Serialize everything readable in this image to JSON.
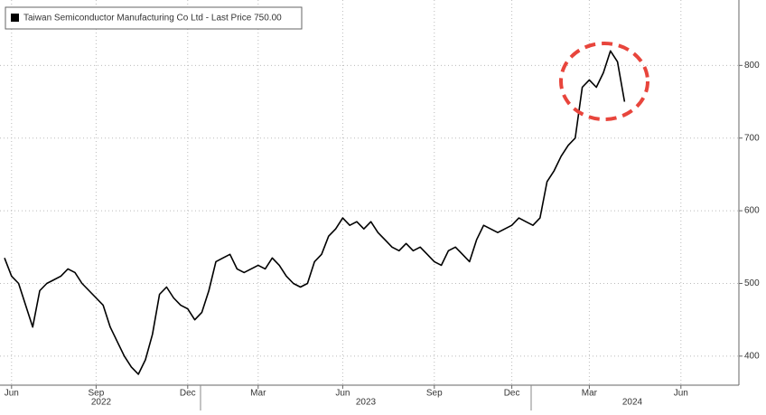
{
  "chart_data": {
    "type": "line",
    "categories": [
      null,
      "Jun",
      null,
      null,
      null,
      null,
      null,
      null,
      null,
      null,
      null,
      null,
      null,
      "Sep",
      null,
      null,
      null,
      null,
      null,
      null,
      null,
      null,
      null,
      null,
      null,
      null,
      "Dec",
      null,
      null,
      null,
      null,
      null,
      null,
      null,
      null,
      null,
      "Mar",
      null,
      null,
      null,
      null,
      null,
      null,
      null,
      null,
      null,
      null,
      null,
      "Jun",
      null,
      null,
      null,
      null,
      null,
      null,
      null,
      null,
      null,
      null,
      null,
      null,
      "Sep",
      null,
      null,
      null,
      null,
      null,
      null,
      null,
      null,
      null,
      null,
      "Dec",
      null,
      null,
      null,
      null,
      null,
      null,
      null,
      null,
      null,
      null,
      "Mar",
      null,
      null,
      null,
      null,
      null,
      null,
      null,
      null,
      null,
      null,
      null,
      null,
      "Jun",
      null,
      null,
      null,
      null,
      null,
      null,
      null,
      null
    ],
    "x_year_labels": [
      "2022",
      "2023",
      "2024"
    ],
    "series": [
      {
        "name": "Taiwan Semiconductor Manufacturing Co Ltd - Last Price 750.00",
        "color": "#000000",
        "values": [
          535,
          510,
          500,
          470,
          440,
          490,
          500,
          505,
          510,
          520,
          515,
          500,
          490,
          480,
          470,
          440,
          420,
          400,
          385,
          375,
          395,
          430,
          485,
          495,
          480,
          470,
          465,
          450,
          460,
          490,
          530,
          535,
          540,
          520,
          515,
          520,
          525,
          520,
          535,
          525,
          510,
          500,
          495,
          500,
          530,
          540,
          565,
          575,
          590,
          580,
          585,
          575,
          585,
          570,
          560,
          550,
          545,
          555,
          545,
          550,
          540,
          530,
          525,
          545,
          550,
          540,
          530,
          560,
          580,
          575,
          570,
          575,
          580,
          590,
          585,
          580,
          590,
          640,
          655,
          675,
          690,
          700,
          770,
          780,
          770,
          790,
          820,
          805,
          750,
          null,
          null,
          null,
          null,
          null,
          null,
          null,
          null,
          null,
          null,
          null,
          null,
          null,
          null,
          null,
          null
        ]
      }
    ],
    "ylim": [
      360,
      890
    ],
    "yticks": [
      400,
      500,
      600,
      700,
      800
    ],
    "grid": true
  }
}
